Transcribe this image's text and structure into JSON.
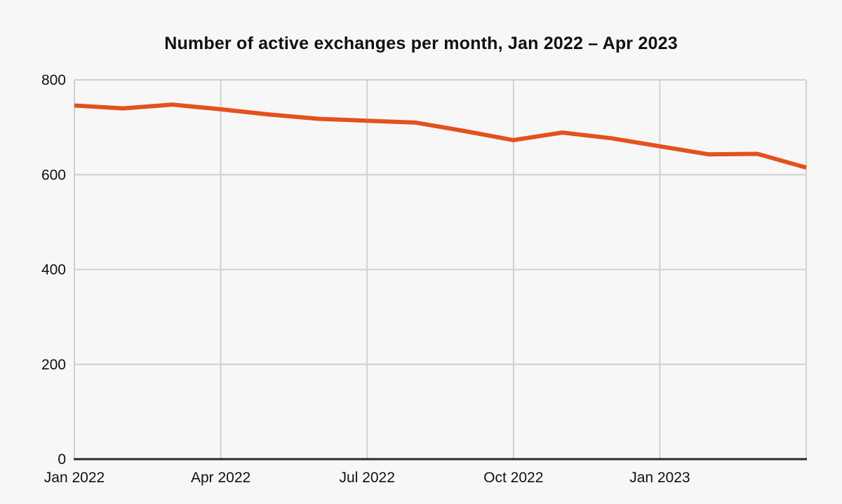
{
  "chart_data": {
    "type": "line",
    "title": "Number of active exchanges per month, Jan 2022 – Apr 2023",
    "x": [
      "Jan 2022",
      "Feb 2022",
      "Mar 2022",
      "Apr 2022",
      "May 2022",
      "Jun 2022",
      "Jul 2022",
      "Aug 2022",
      "Sep 2022",
      "Oct 2022",
      "Nov 2022",
      "Dec 2022",
      "Jan 2023",
      "Feb 2023",
      "Mar 2023",
      "Apr 2023"
    ],
    "values": [
      746,
      740,
      748,
      738,
      727,
      718,
      714,
      710,
      692,
      673,
      689,
      677,
      660,
      643,
      644,
      615
    ],
    "x_tick_labels": [
      "Jan 2022",
      "Apr 2022",
      "Jul 2022",
      "Oct 2022",
      "Jan 2023"
    ],
    "x_tick_month_indices": [
      0,
      3,
      6,
      9,
      12
    ],
    "x_gridline_month_indices": [
      0,
      3,
      6,
      9,
      12,
      15
    ],
    "y_ticks": [
      0,
      200,
      400,
      600,
      800
    ],
    "ylim": [
      0,
      800
    ],
    "grid": true,
    "legend": "none",
    "colors": {
      "line": "#e4511d",
      "background": "#f7f7f7",
      "grid": "#d0d0d0",
      "axis": "#2a2a2a",
      "text": "#111111"
    }
  }
}
